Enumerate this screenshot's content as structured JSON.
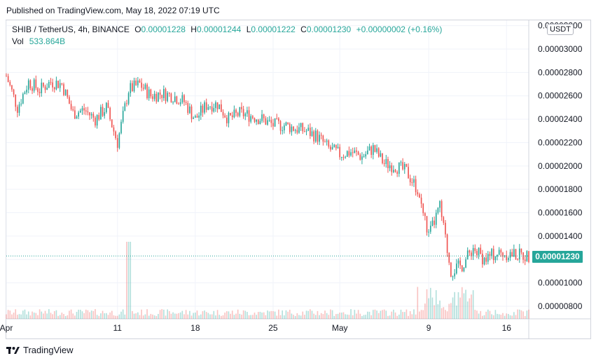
{
  "header": {
    "published": "Published on TradingView.com, May 18, 2022 07:19 UTC"
  },
  "legend": {
    "symbol": "SHIB / TetherUS, 4h, BINANCE",
    "o_label": "O",
    "o_value": "0.00001228",
    "h_label": "H",
    "h_value": "0.00001244",
    "l_label": "L",
    "l_value": "0.00001222",
    "c_label": "C",
    "c_value": "0.00001230",
    "change": "+0.00000002 (+0.16%)",
    "vol_label": "Vol",
    "vol_value": "533.864B"
  },
  "currency": "USDT",
  "last_price": "0.00001230",
  "footer": {
    "brand": "TradingView"
  },
  "colors": {
    "up": "#26a69a",
    "down": "#ef5350",
    "grid": "#f0f3fa",
    "text": "#131722"
  },
  "chart_data": {
    "type": "candlestick",
    "y_axis": {
      "ylim": [
        6.8e-06,
        3.22e-05
      ],
      "ticks": [
        "0.00000800",
        "0.00001000",
        "0.00001200",
        "0.00001400",
        "0.00001600",
        "0.00001800",
        "0.00002000",
        "0.00002200",
        "0.00002400",
        "0.00002600",
        "0.00002800",
        "0.00003000",
        "0.00003200"
      ],
      "tick_values": [
        8e-06,
        1e-05,
        1.2e-05,
        1.4e-05,
        1.6e-05,
        1.8e-05,
        2e-05,
        2.2e-05,
        2.4e-05,
        2.6e-05,
        2.8e-05,
        3e-05,
        3.2e-05
      ]
    },
    "x_axis": {
      "range_days": [
        "2022-04-01",
        "2022-05-18"
      ],
      "ticks": [
        {
          "label": "Apr",
          "date": "2022-04-01"
        },
        {
          "label": "11",
          "date": "2022-04-11"
        },
        {
          "label": "18",
          "date": "2022-04-18"
        },
        {
          "label": "25",
          "date": "2022-04-25"
        },
        {
          "label": "May",
          "date": "2022-05-01"
        },
        {
          "label": "9",
          "date": "2022-05-09"
        },
        {
          "label": "16",
          "date": "2022-05-16"
        }
      ]
    },
    "close_path": [
      [
        "2022-04-01",
        2.77e-05
      ],
      [
        "2022-04-02",
        2.5e-05
      ],
      [
        "2022-04-03",
        2.72e-05
      ],
      [
        "2022-04-04",
        2.65e-05
      ],
      [
        "2022-04-05",
        2.72e-05
      ],
      [
        "2022-04-06",
        2.7e-05
      ],
      [
        "2022-04-07",
        2.45e-05
      ],
      [
        "2022-04-08",
        2.48e-05
      ],
      [
        "2022-04-09",
        2.4e-05
      ],
      [
        "2022-04-10",
        2.5e-05
      ],
      [
        "2022-04-11",
        2.2e-05
      ],
      [
        "2022-04-12",
        2.65e-05
      ],
      [
        "2022-04-13",
        2.7e-05
      ],
      [
        "2022-04-14",
        2.6e-05
      ],
      [
        "2022-04-15",
        2.62e-05
      ],
      [
        "2022-04-16",
        2.6e-05
      ],
      [
        "2022-04-17",
        2.55e-05
      ],
      [
        "2022-04-18",
        2.4e-05
      ],
      [
        "2022-04-19",
        2.52e-05
      ],
      [
        "2022-04-20",
        2.53e-05
      ],
      [
        "2022-04-21",
        2.4e-05
      ],
      [
        "2022-04-22",
        2.45e-05
      ],
      [
        "2022-04-23",
        2.43e-05
      ],
      [
        "2022-04-24",
        2.4e-05
      ],
      [
        "2022-04-25",
        2.35e-05
      ],
      [
        "2022-04-26",
        2.35e-05
      ],
      [
        "2022-04-27",
        2.32e-05
      ],
      [
        "2022-04-28",
        2.3e-05
      ],
      [
        "2022-04-29",
        2.25e-05
      ],
      [
        "2022-04-30",
        2.15e-05
      ],
      [
        "2022-05-01",
        2.1e-05
      ],
      [
        "2022-05-02",
        2.12e-05
      ],
      [
        "2022-05-03",
        2.08e-05
      ],
      [
        "2022-05-04",
        2.15e-05
      ],
      [
        "2022-05-05",
        2.02e-05
      ],
      [
        "2022-05-06",
        2e-05
      ],
      [
        "2022-05-07",
        1.95e-05
      ],
      [
        "2022-05-08",
        1.8e-05
      ],
      [
        "2022-05-09",
        1.4e-05
      ],
      [
        "2022-05-10",
        1.65e-05
      ],
      [
        "2022-05-11",
        1.1e-05
      ],
      [
        "2022-05-12",
        1.15e-05
      ],
      [
        "2022-05-13",
        1.3e-05
      ],
      [
        "2022-05-14",
        1.2e-05
      ],
      [
        "2022-05-15",
        1.25e-05
      ],
      [
        "2022-05-16",
        1.25e-05
      ],
      [
        "2022-05-17",
        1.24e-05
      ],
      [
        "2022-05-18",
        1.23e-05
      ]
    ],
    "volume_spike_date": "2022-04-12",
    "last_close": 1.23e-05
  }
}
